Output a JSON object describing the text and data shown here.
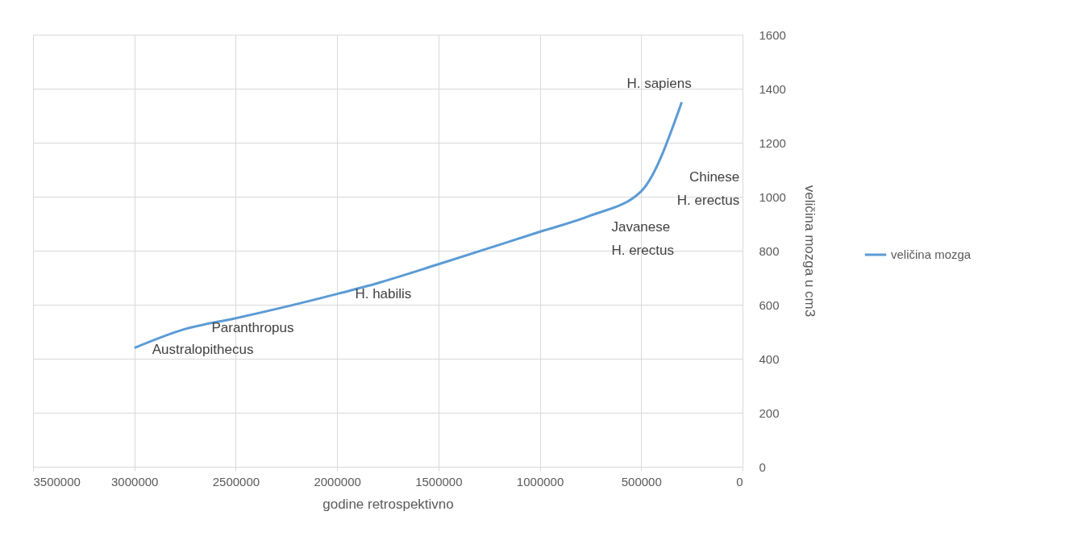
{
  "chart_data": {
    "type": "line",
    "xlabel": "godine retrospektivno",
    "ylabel": "veličina mozga u cm3",
    "x": [
      3000000,
      2750000,
      2500000,
      2000000,
      1800000,
      1500000,
      1000000,
      750000,
      500000,
      300000
    ],
    "series": [
      {
        "name": "veličina mozga",
        "color": "#5b9bd5",
        "values": [
          440,
          510,
          550,
          640,
          680,
          750,
          870,
          930,
          1020,
          1350
        ]
      }
    ],
    "xlim": [
      3500000,
      0
    ],
    "xticks": [
      3500000,
      3000000,
      2500000,
      2000000,
      1500000,
      1000000,
      500000,
      0
    ],
    "ylim": [
      0,
      1600
    ],
    "yticks": [
      0,
      200,
      400,
      600,
      800,
      1000,
      1200,
      1400,
      1600
    ],
    "annotations": [
      {
        "text": "Australopithecus",
        "x": 3000000,
        "y": 440
      },
      {
        "text": "Paranthropus",
        "x": 2500000,
        "y": 550
      },
      {
        "text": "H. habilis",
        "x": 1800000,
        "y": 680
      },
      {
        "text": "Javanese\nH. erectus",
        "x": 750000,
        "y": 930
      },
      {
        "text": "Chinese\nH. erectus",
        "x": 500000,
        "y": 1020
      },
      {
        "text": "H. sapiens",
        "x": 300000,
        "y": 1350
      }
    ],
    "grid": true,
    "legend": "right",
    "marker": "none",
    "line_style": "solid"
  }
}
